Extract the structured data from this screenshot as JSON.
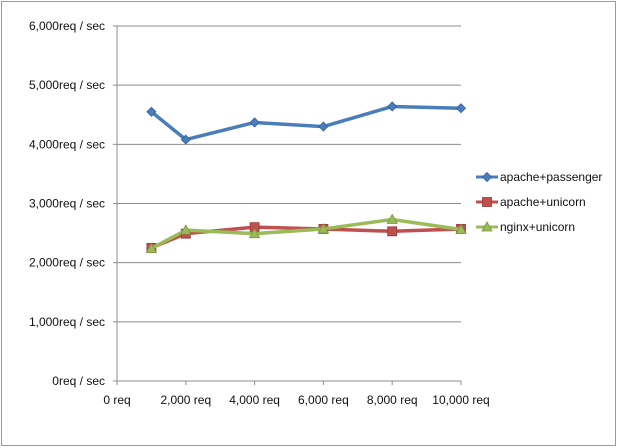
{
  "chart_data": {
    "type": "line",
    "x": [
      1000,
      2000,
      4000,
      6000,
      8000,
      10000
    ],
    "xlim": [
      0,
      10000
    ],
    "ylim": [
      0,
      6000
    ],
    "x_ticks": [
      "0 req",
      "2,000 req",
      "4,000 req",
      "6,000 req",
      "8,000 req",
      "10,000 req"
    ],
    "y_ticks": [
      "0req / sec",
      "1,000req / sec",
      "2,000req / sec",
      "3,000req / sec",
      "4,000req / sec",
      "5,000req / sec",
      "6,000req / sec"
    ],
    "grid": "horizontal",
    "legend_position": "right",
    "series": [
      {
        "name": "apache+passenger",
        "color": "#4a7ebb",
        "marker": "diamond",
        "values": [
          4550,
          4080,
          4370,
          4300,
          4640,
          4610
        ]
      },
      {
        "name": "apache+unicorn",
        "color": "#c0504d",
        "marker": "square",
        "values": [
          2250,
          2490,
          2600,
          2570,
          2530,
          2570
        ]
      },
      {
        "name": "nginx+unicorn",
        "color": "#9bbb59",
        "marker": "triangle",
        "values": [
          2240,
          2550,
          2490,
          2570,
          2730,
          2560
        ]
      }
    ]
  }
}
